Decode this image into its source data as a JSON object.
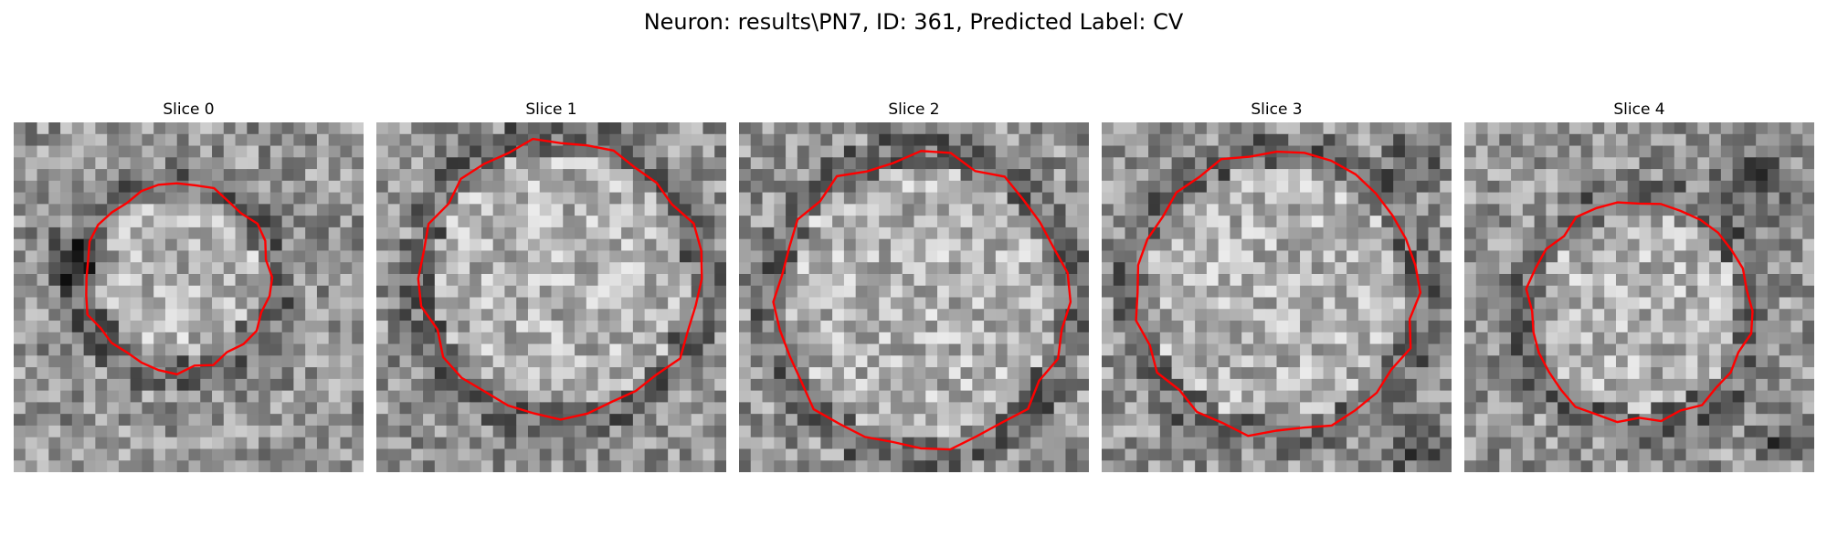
{
  "figure": {
    "title": "Neuron: results\\PN7, ID: 361, Predicted Label: CV"
  },
  "panels": [
    {
      "title": "Slice 0"
    },
    {
      "title": "Slice 1"
    },
    {
      "title": "Slice 2"
    },
    {
      "title": "Slice 3"
    },
    {
      "title": "Slice 4"
    }
  ],
  "colors": {
    "contour": "#ff0000",
    "colormap": "gray"
  }
}
